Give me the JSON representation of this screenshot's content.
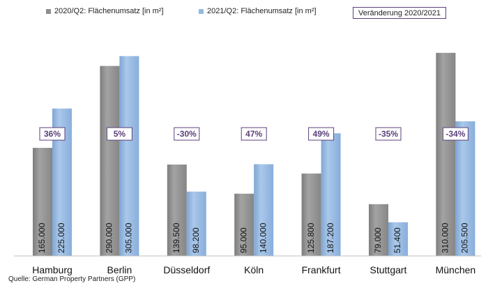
{
  "chart_data": {
    "type": "bar",
    "categories": [
      "Hamburg",
      "Berlin",
      "Düsseldorf",
      "Köln",
      "Frankfurt",
      "Stuttgart",
      "München"
    ],
    "series": [
      {
        "name": "2020/Q2: Flächenumsatz [in m²]",
        "values": [
          165000,
          290000,
          139500,
          95000,
          125800,
          79000,
          310000
        ],
        "labels": [
          "165.000",
          "290.000",
          "139.500",
          "95.000",
          "125.800",
          "79.000",
          "310.000"
        ],
        "color": "#8f8f8f"
      },
      {
        "name": "2021/Q2: Flächenumsatz [in m²]",
        "values": [
          225000,
          305000,
          98200,
          140000,
          187200,
          51400,
          205500
        ],
        "labels": [
          "225.000",
          "305.000",
          "98.200",
          "140.000",
          "187.200",
          "51.400",
          "205.500"
        ],
        "color": "#96b9e0"
      }
    ],
    "change": {
      "name": "Veränderung 2020/2021",
      "labels": [
        "36%",
        "5%",
        "-30%",
        "47%",
        "49%",
        "-35%",
        "-34%"
      ],
      "color": "#5b3f7a"
    },
    "ylim": [
      0,
      330000
    ],
    "grid": false,
    "legend_position": "top"
  },
  "source_note": "Quelle: German Property Partners (GPP)"
}
